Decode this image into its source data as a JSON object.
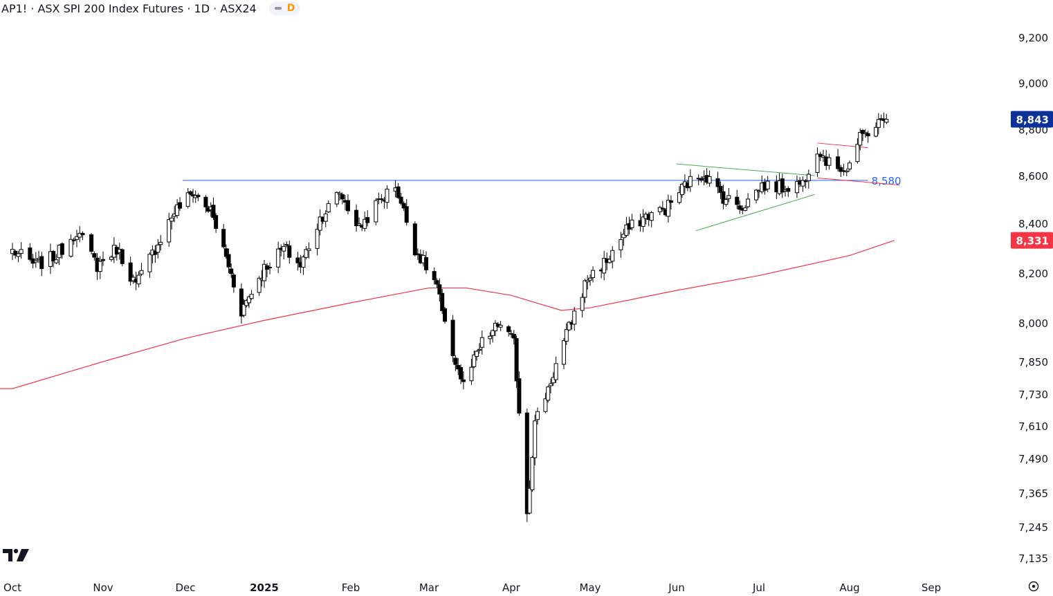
{
  "header": {
    "symbol_title": "AP1! · ASX SPI 200 Index Futures · 1D · ASX24",
    "interval_badge": "D"
  },
  "icons": {
    "logo": "tradingview-logo-icon",
    "settings": "settings-icon",
    "badge_marker": "pill-icon"
  },
  "colors": {
    "candle_up": "#ffffff",
    "candle_down": "#000000",
    "ma_line": "#f23645",
    "resistance_line": "#2962ff",
    "last_price_badge": "#0c3299",
    "ma_badge": "#f23645",
    "triangle_lines": "#4caf50",
    "flag_lines": "#f23645"
  },
  "chart_data": {
    "type": "candlestick",
    "title": "AP1! · ASX SPI 200 Index Futures · 1D · ASX24",
    "x_axis": {
      "tick_labels": [
        "Oct",
        "Nov",
        "Dec",
        "2025",
        "Feb",
        "Mar",
        "Apr",
        "May",
        "Jun",
        "Jul",
        "Aug",
        "Sep"
      ],
      "range": [
        "2024-10-01",
        "2025-09-08"
      ]
    },
    "y_axis": {
      "scale": "log",
      "tick_labels": [
        "9,200",
        "9,000",
        "8,800",
        "8,600",
        "8,400",
        "8,200",
        "8,000",
        "7,850",
        "7,730",
        "7,610",
        "7,490",
        "7,365",
        "7,245",
        "7,135"
      ],
      "tick_values": [
        9200,
        9000,
        8800,
        8600,
        8400,
        8200,
        8000,
        7850,
        7730,
        7610,
        7490,
        7365,
        7245,
        7135
      ],
      "range": [
        7100,
        9300
      ]
    },
    "series": [
      {
        "type": "candlestick",
        "path": [
          [
            "2024-10-01",
            8290
          ],
          [
            "2024-10-09",
            8230
          ],
          [
            "2024-10-16",
            8270
          ],
          [
            "2024-10-23",
            8370
          ],
          [
            "2024-10-30",
            8230
          ],
          [
            "2024-11-06",
            8300
          ],
          [
            "2024-11-13",
            8150
          ],
          [
            "2024-11-20",
            8300
          ],
          [
            "2024-11-27",
            8450
          ],
          [
            "2024-12-04",
            8530
          ],
          [
            "2024-12-11",
            8450
          ],
          [
            "2024-12-18",
            8230
          ],
          [
            "2024-12-23",
            8050
          ],
          [
            "2025-01-01",
            8220
          ],
          [
            "2025-01-08",
            8300
          ],
          [
            "2025-01-14",
            8230
          ],
          [
            "2025-01-21",
            8420
          ],
          [
            "2025-01-28",
            8530
          ],
          [
            "2025-02-04",
            8380
          ],
          [
            "2025-02-11",
            8490
          ],
          [
            "2025-02-17",
            8560
          ],
          [
            "2025-02-24",
            8300
          ],
          [
            "2025-03-04",
            8150
          ],
          [
            "2025-03-07",
            7980
          ],
          [
            "2025-03-14",
            7760
          ],
          [
            "2025-03-21",
            7920
          ],
          [
            "2025-03-28",
            8000
          ],
          [
            "2025-04-02",
            7920
          ],
          [
            "2025-04-07",
            7300
          ],
          [
            "2025-04-10",
            7620
          ],
          [
            "2025-04-16",
            7780
          ],
          [
            "2025-04-23",
            7980
          ],
          [
            "2025-04-30",
            8180
          ],
          [
            "2025-05-07",
            8250
          ],
          [
            "2025-05-14",
            8370
          ],
          [
            "2025-05-21",
            8430
          ],
          [
            "2025-05-28",
            8460
          ],
          [
            "2025-06-04",
            8560
          ],
          [
            "2025-06-11",
            8610
          ],
          [
            "2025-06-18",
            8510
          ],
          [
            "2025-06-25",
            8470
          ],
          [
            "2025-07-02",
            8560
          ],
          [
            "2025-07-09",
            8550
          ],
          [
            "2025-07-16",
            8570
          ],
          [
            "2025-07-21",
            8720
          ],
          [
            "2025-07-25",
            8650
          ],
          [
            "2025-07-31",
            8630
          ],
          [
            "2025-08-05",
            8760
          ],
          [
            "2025-08-11",
            8820
          ],
          [
            "2025-08-15",
            8843
          ]
        ],
        "last_price": 8843
      },
      {
        "type": "line",
        "points": [
          [
            "2024-10-01",
            7750
          ],
          [
            "2024-11-01",
            7850
          ],
          [
            "2024-12-01",
            7940
          ],
          [
            "2025-01-01",
            8010
          ],
          [
            "2025-02-01",
            8080
          ],
          [
            "2025-03-01",
            8140
          ],
          [
            "2025-03-15",
            8140
          ],
          [
            "2025-04-01",
            8110
          ],
          [
            "2025-04-20",
            8050
          ],
          [
            "2025-05-01",
            8060
          ],
          [
            "2025-06-01",
            8130
          ],
          [
            "2025-07-01",
            8190
          ],
          [
            "2025-08-01",
            8270
          ],
          [
            "2025-08-18",
            8331
          ]
        ],
        "last_value": 8331
      }
    ],
    "annotations": [
      {
        "type": "horizontal_level",
        "value": 8580,
        "label": "8,580",
        "from": "2024-11-30",
        "to": "2025-08-08"
      },
      {
        "type": "trendline",
        "from": [
          "2025-06-01",
          8650
        ],
        "to": [
          "2025-07-20",
          8600
        ]
      },
      {
        "type": "trendline",
        "from": [
          "2025-06-08",
          8370
        ],
        "to": [
          "2025-07-20",
          8520
        ]
      },
      {
        "type": "trendline",
        "from": [
          "2025-07-21",
          8740
        ],
        "to": [
          "2025-08-08",
          8720
        ]
      },
      {
        "type": "trendline",
        "from": [
          "2025-07-21",
          8590
        ],
        "to": [
          "2025-08-20",
          8560
        ]
      }
    ],
    "price_badges": [
      {
        "label": "8,843",
        "role": "last-price"
      },
      {
        "label": "8,331",
        "role": "moving-average"
      }
    ]
  }
}
